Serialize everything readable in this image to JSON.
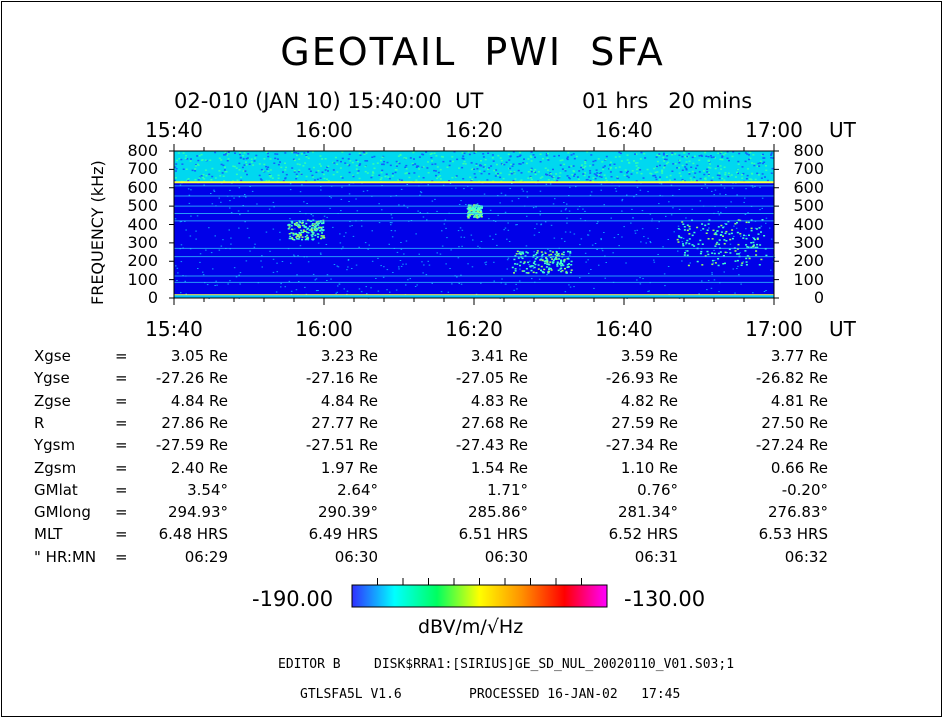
{
  "chart_data": {
    "type": "heatmap",
    "title": "GEOTAIL  PWI  SFA",
    "subtitle": {
      "date": "02-010 (JAN 10) 15:40:00  UT",
      "duration": "01 hrs   20 mins"
    },
    "time_ticks": [
      "15:40",
      "16:00",
      "16:20",
      "16:40",
      "17:00"
    ],
    "time_unit": "UT",
    "xlim": [
      0,
      80
    ],
    "y_ticks": [
      "800",
      "700",
      "600",
      "500",
      "400",
      "300",
      "200",
      "100",
      "0"
    ],
    "ylabel": "FREQUENCY (kHz)",
    "ylim": [
      0,
      800
    ],
    "colorbar": {
      "min": "-190.00",
      "max": "-130.00",
      "unit": "dBV/m/√Hz"
    },
    "features": {
      "background_level": "blue",
      "upper_band": {
        "from_khz": 630,
        "to_khz": 800,
        "level": "cyan"
      },
      "horizontal_lines_khz": [
        630,
        610,
        555,
        500,
        460,
        420,
        270,
        225,
        120,
        85,
        15
      ],
      "emission_patches": [
        {
          "t_min": 45,
          "t_max": 53,
          "khz_min": 140,
          "khz_max": 260
        },
        {
          "t_min": 67,
          "t_max": 79,
          "khz_min": 180,
          "khz_max": 430
        },
        {
          "t_min": 15,
          "t_max": 20,
          "khz_min": 320,
          "khz_max": 430
        },
        {
          "t_min": 39,
          "t_max": 41,
          "khz_min": 440,
          "khz_max": 510
        }
      ]
    }
  },
  "params": {
    "rows": [
      {
        "label": "Xgse",
        "sep": "=",
        "values": [
          "3.05 Re",
          "3.23 Re",
          "3.41 Re",
          "3.59 Re",
          "3.77 Re"
        ]
      },
      {
        "label": "Ygse",
        "sep": "=",
        "values": [
          "-27.26 Re",
          "-27.16 Re",
          "-27.05 Re",
          "-26.93 Re",
          "-26.82 Re"
        ]
      },
      {
        "label": "Zgse",
        "sep": "=",
        "values": [
          "4.84 Re",
          "4.84 Re",
          "4.83 Re",
          "4.82 Re",
          "4.81 Re"
        ]
      },
      {
        "label": "R",
        "sep": "=",
        "values": [
          "27.86 Re",
          "27.77 Re",
          "27.68 Re",
          "27.59 Re",
          "27.50 Re"
        ]
      },
      {
        "label": "Ygsm",
        "sep": "=",
        "values": [
          "-27.59 Re",
          "-27.51 Re",
          "-27.43 Re",
          "-27.34 Re",
          "-27.24 Re"
        ]
      },
      {
        "label": "Zgsm",
        "sep": "=",
        "values": [
          "2.40 Re",
          "1.97 Re",
          "1.54 Re",
          "1.10 Re",
          "0.66 Re"
        ]
      },
      {
        "label": "GMlat",
        "sep": "=",
        "values": [
          "3.54°",
          "2.64°",
          "1.71°",
          "0.76°",
          "-0.20°"
        ]
      },
      {
        "label": "GMlong",
        "sep": "=",
        "values": [
          "294.93°",
          "290.39°",
          "285.86°",
          "281.34°",
          "276.83°"
        ]
      },
      {
        "label": "MLT",
        "sep": "=",
        "values": [
          "6.48 HRS",
          "6.49 HRS",
          "6.51 HRS",
          "6.52 HRS",
          "6.53 HRS"
        ]
      },
      {
        "label": "\" HR:MN",
        "sep": "=",
        "values": [
          "06:29",
          "06:30",
          "06:30",
          "06:31",
          "06:32"
        ]
      }
    ]
  },
  "footer": {
    "editor": "EDITOR B",
    "file": "DISK$RRA1:[SIRIUS]GE_SD_NUL_20020110_V01.S03;1",
    "program": "GTLSFA5L V1.6",
    "processed": "PROCESSED 16-JAN-02   17:45"
  },
  "colors": {
    "background": "#0000e8",
    "upper": "#00d8f0",
    "line": "#ffff40",
    "colorbar": [
      "#3030ff",
      "#00ffff",
      "#00ff60",
      "#ffff00",
      "#ff9000",
      "#ff0000",
      "#ff00ff"
    ]
  }
}
